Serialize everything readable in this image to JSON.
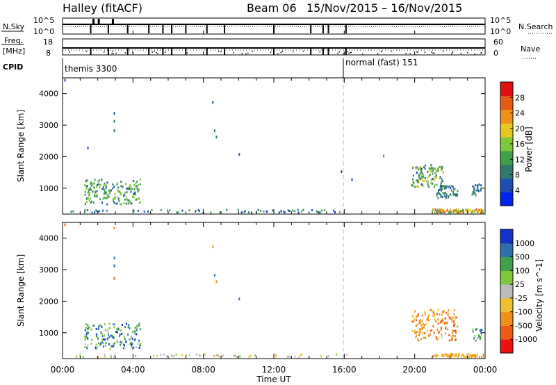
{
  "header": {
    "radar": "Halley (fitACF)",
    "beam": "Beam 06",
    "dates": "15/Nov/2015 – 16/Nov/2015"
  },
  "panels": {
    "nsky": {
      "label": "N.Sky",
      "ticks": [
        "10^5",
        "10^0"
      ],
      "right_label": "N.Search",
      "right_ticks": [
        "10^5",
        "10^0"
      ]
    },
    "freq": {
      "label": "Freq.",
      "unit": "[MHz]",
      "ticks": [
        "18",
        "8"
      ],
      "right_label": "Nave",
      "right_ticks": [
        "60",
        "0"
      ]
    },
    "cpid": {
      "label": "CPID",
      "entries": [
        {
          "text": "themis 3300",
          "start_hour": 0.0
        },
        {
          "text": "normal (fast) 151",
          "start_hour": 16.0
        }
      ]
    }
  },
  "x_axis": {
    "label": "Time UT",
    "tick_labels": [
      "00:00",
      "04:00",
      "08:00",
      "12:00",
      "16:00",
      "20:00",
      "00:00"
    ]
  },
  "colors": {
    "power": [
      "#0022ee",
      "#1c4fb0",
      "#2f7a6e",
      "#3fa047",
      "#7cc83a",
      "#e8c820",
      "#f0901a",
      "#e85a14",
      "#e01010"
    ],
    "velocity": [
      "#ee1111",
      "#f05a14",
      "#f0901a",
      "#f0c030",
      "#bbbbbb",
      "#7cc83a",
      "#3fa047",
      "#2f6fb0",
      "#1133cc"
    ]
  },
  "chart_data": [
    {
      "type": "heatmap",
      "title": "",
      "xlabel": "Time UT",
      "ylabel": "Slant Range [km]",
      "xlim": [
        0,
        24
      ],
      "ylim": [
        180,
        4500
      ],
      "yticks": [
        1000,
        2000,
        3000,
        4000
      ],
      "colorbar_label": "Power [dB]",
      "colorbar_ticks": [
        4,
        8,
        12,
        16,
        20,
        24,
        28
      ],
      "colorbar_range": [
        0,
        32
      ],
      "blobs": [
        {
          "t0": 1.2,
          "t1": 4.4,
          "r0": 450,
          "r1": 1250,
          "v0": 6,
          "v1": 18,
          "n": 170
        },
        {
          "t0": 19.8,
          "t1": 21.6,
          "r0": 1000,
          "r1": 1700,
          "v0": 6,
          "v1": 20,
          "n": 110
        },
        {
          "t0": 21.2,
          "t1": 22.4,
          "r0": 650,
          "r1": 1050,
          "v0": 4,
          "v1": 14,
          "n": 60
        },
        {
          "t0": 23.2,
          "t1": 23.8,
          "r0": 700,
          "r1": 1100,
          "v0": 4,
          "v1": 10,
          "n": 22
        },
        {
          "t0": 21.0,
          "t1": 23.9,
          "r0": 190,
          "r1": 300,
          "v0": 10,
          "v1": 28,
          "n": 90
        },
        {
          "t0": 0.2,
          "t1": 16.5,
          "r0": 190,
          "r1": 280,
          "v0": 3,
          "v1": 14,
          "n": 70
        }
      ],
      "points": [
        {
          "t": 0.1,
          "r": 4400,
          "v": 5
        },
        {
          "t": 2.9,
          "r": 3350,
          "v": 6
        },
        {
          "t": 2.9,
          "r": 3100,
          "v": 9
        },
        {
          "t": 2.9,
          "r": 2800,
          "v": 8
        },
        {
          "t": 8.5,
          "r": 3700,
          "v": 6
        },
        {
          "t": 8.6,
          "r": 2800,
          "v": 8
        },
        {
          "t": 8.7,
          "r": 2600,
          "v": 10
        },
        {
          "t": 1.4,
          "r": 2250,
          "v": 6
        },
        {
          "t": 10.0,
          "r": 2050,
          "v": 7
        },
        {
          "t": 15.8,
          "r": 1500,
          "v": 4
        },
        {
          "t": 16.4,
          "r": 1250,
          "v": 4
        },
        {
          "t": 18.2,
          "r": 2000,
          "v": 12
        }
      ]
    },
    {
      "type": "heatmap",
      "title": "",
      "xlabel": "Time UT",
      "ylabel": "Slant Range [km]",
      "xlim": [
        0,
        24
      ],
      "ylim": [
        180,
        4500
      ],
      "yticks": [
        1000,
        2000,
        3000,
        4000
      ],
      "colorbar_label": "Velocity [m s^-1]",
      "colorbar_ticks": [
        "1000",
        "500",
        "100",
        "25",
        "-25",
        "-100",
        "-500",
        "-1000"
      ],
      "blobs": [
        {
          "t0": 1.2,
          "t1": 4.4,
          "r0": 450,
          "r1": 1250,
          "v0": 4,
          "v1": 8,
          "n": 150
        },
        {
          "t0": 19.8,
          "t1": 22.4,
          "r0": 700,
          "r1": 1700,
          "v0": 1,
          "v1": 3,
          "n": 150
        },
        {
          "t0": 23.2,
          "t1": 23.8,
          "r0": 700,
          "r1": 1100,
          "v0": 5,
          "v1": 7,
          "n": 20
        },
        {
          "t0": 21.0,
          "t1": 23.9,
          "r0": 190,
          "r1": 300,
          "v0": 2,
          "v1": 3,
          "n": 70
        },
        {
          "t0": 0.2,
          "t1": 16.5,
          "r0": 190,
          "r1": 280,
          "v0": 3,
          "v1": 5,
          "n": 55
        }
      ],
      "points": [
        {
          "t": 0.1,
          "r": 4400,
          "v": 1
        },
        {
          "t": 2.9,
          "r": 4300,
          "v": 2
        },
        {
          "t": 2.9,
          "r": 3350,
          "v": 7
        },
        {
          "t": 2.9,
          "r": 3100,
          "v": 7
        },
        {
          "t": 2.9,
          "r": 2700,
          "v": 1
        },
        {
          "t": 8.5,
          "r": 3700,
          "v": 2
        },
        {
          "t": 8.6,
          "r": 2800,
          "v": 7
        },
        {
          "t": 8.7,
          "r": 2600,
          "v": 2
        },
        {
          "t": 10.0,
          "r": 2050,
          "v": 7
        }
      ]
    }
  ]
}
